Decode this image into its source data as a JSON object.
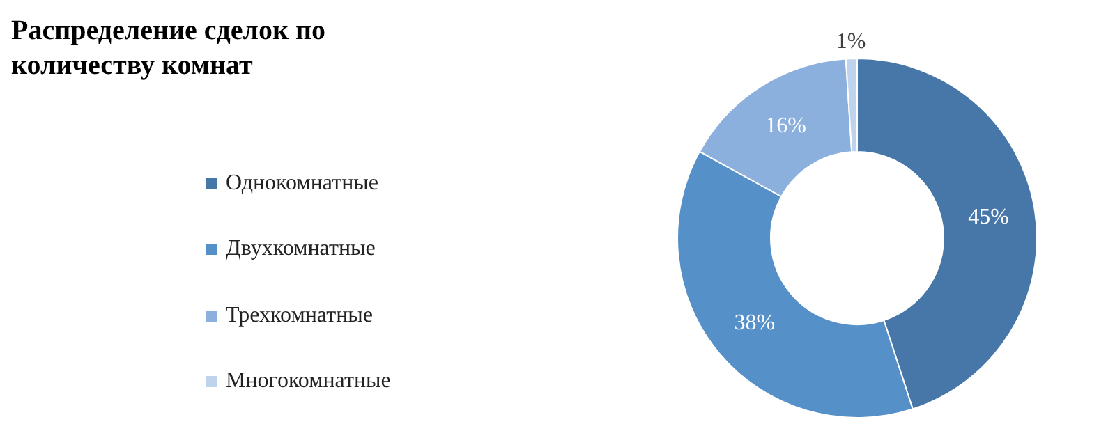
{
  "chart_data": {
    "type": "donut",
    "title": "Распределение сделок по количеству комнат",
    "categories": [
      "Однокомнатные",
      "Двухкомнатные",
      "Трехкомнатные",
      "Многокомнатные"
    ],
    "values": [
      45,
      38,
      16,
      1
    ],
    "colors": [
      "#4677a8",
      "#5590c8",
      "#8cb0dd",
      "#bfd3ec"
    ],
    "value_labels": [
      "45%",
      "38%",
      "16%",
      "1%"
    ],
    "legend": "left"
  }
}
